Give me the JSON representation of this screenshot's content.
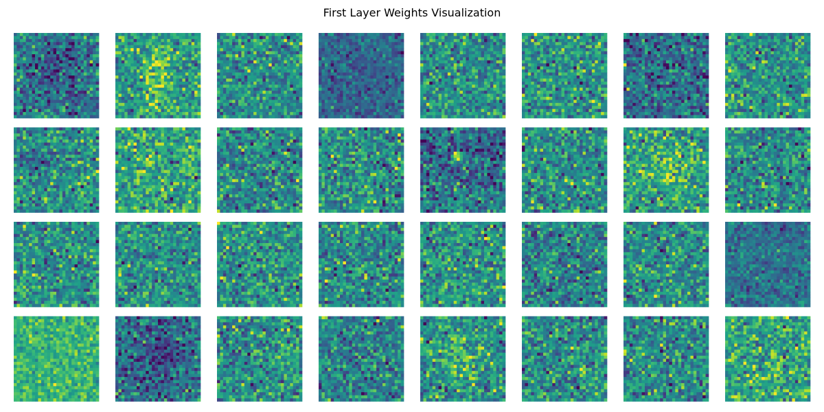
{
  "chart_data": {
    "type": "heatmap",
    "title": "First Layer Weights Visualization",
    "layout": {
      "rows": 4,
      "cols": 8
    },
    "panel_resolution": 28,
    "colormap": "viridis",
    "axes_visible": false,
    "panels": [
      {
        "index": 0,
        "row": 0,
        "col": 0,
        "mean": 0.42,
        "pattern": "blob-dark-center"
      },
      {
        "index": 1,
        "row": 0,
        "col": 1,
        "mean": 0.55,
        "pattern": "bright-center-vertical"
      },
      {
        "index": 2,
        "row": 0,
        "col": 2,
        "mean": 0.48,
        "pattern": "noise"
      },
      {
        "index": 3,
        "row": 0,
        "col": 3,
        "mean": 0.38,
        "pattern": "dark-smooth"
      },
      {
        "index": 4,
        "row": 0,
        "col": 4,
        "mean": 0.5,
        "pattern": "noise"
      },
      {
        "index": 5,
        "row": 0,
        "col": 5,
        "mean": 0.52,
        "pattern": "noise"
      },
      {
        "index": 6,
        "row": 0,
        "col": 6,
        "mean": 0.4,
        "pattern": "noise-dark"
      },
      {
        "index": 7,
        "row": 0,
        "col": 7,
        "mean": 0.5,
        "pattern": "noise"
      },
      {
        "index": 8,
        "row": 1,
        "col": 0,
        "mean": 0.5,
        "pattern": "dark-left-streak"
      },
      {
        "index": 9,
        "row": 1,
        "col": 1,
        "mean": 0.55,
        "pattern": "noise-bright"
      },
      {
        "index": 10,
        "row": 1,
        "col": 2,
        "mean": 0.48,
        "pattern": "noise"
      },
      {
        "index": 11,
        "row": 1,
        "col": 3,
        "mean": 0.5,
        "pattern": "noise"
      },
      {
        "index": 12,
        "row": 1,
        "col": 4,
        "mean": 0.42,
        "pattern": "dark-top-bright-spot"
      },
      {
        "index": 13,
        "row": 1,
        "col": 5,
        "mean": 0.5,
        "pattern": "noise"
      },
      {
        "index": 14,
        "row": 1,
        "col": 6,
        "mean": 0.55,
        "pattern": "bright-center"
      },
      {
        "index": 15,
        "row": 1,
        "col": 7,
        "mean": 0.48,
        "pattern": "noise"
      },
      {
        "index": 16,
        "row": 2,
        "col": 0,
        "mean": 0.5,
        "pattern": "noise"
      },
      {
        "index": 17,
        "row": 2,
        "col": 1,
        "mean": 0.5,
        "pattern": "noise"
      },
      {
        "index": 18,
        "row": 2,
        "col": 2,
        "mean": 0.52,
        "pattern": "noise"
      },
      {
        "index": 19,
        "row": 2,
        "col": 3,
        "mean": 0.48,
        "pattern": "noise"
      },
      {
        "index": 20,
        "row": 2,
        "col": 4,
        "mean": 0.52,
        "pattern": "noise"
      },
      {
        "index": 21,
        "row": 2,
        "col": 5,
        "mean": 0.45,
        "pattern": "noise"
      },
      {
        "index": 22,
        "row": 2,
        "col": 6,
        "mean": 0.5,
        "pattern": "noise"
      },
      {
        "index": 23,
        "row": 2,
        "col": 7,
        "mean": 0.42,
        "pattern": "dark-smooth"
      },
      {
        "index": 24,
        "row": 3,
        "col": 0,
        "mean": 0.62,
        "pattern": "bright-smooth"
      },
      {
        "index": 25,
        "row": 3,
        "col": 1,
        "mean": 0.38,
        "pattern": "blob-dark-center"
      },
      {
        "index": 26,
        "row": 3,
        "col": 2,
        "mean": 0.5,
        "pattern": "noise"
      },
      {
        "index": 27,
        "row": 3,
        "col": 3,
        "mean": 0.45,
        "pattern": "noise"
      },
      {
        "index": 28,
        "row": 3,
        "col": 4,
        "mean": 0.5,
        "pattern": "bright-center"
      },
      {
        "index": 29,
        "row": 3,
        "col": 5,
        "mean": 0.5,
        "pattern": "noise"
      },
      {
        "index": 30,
        "row": 3,
        "col": 6,
        "mean": 0.48,
        "pattern": "noise"
      },
      {
        "index": 31,
        "row": 3,
        "col": 7,
        "mean": 0.55,
        "pattern": "noise-bright"
      }
    ]
  }
}
